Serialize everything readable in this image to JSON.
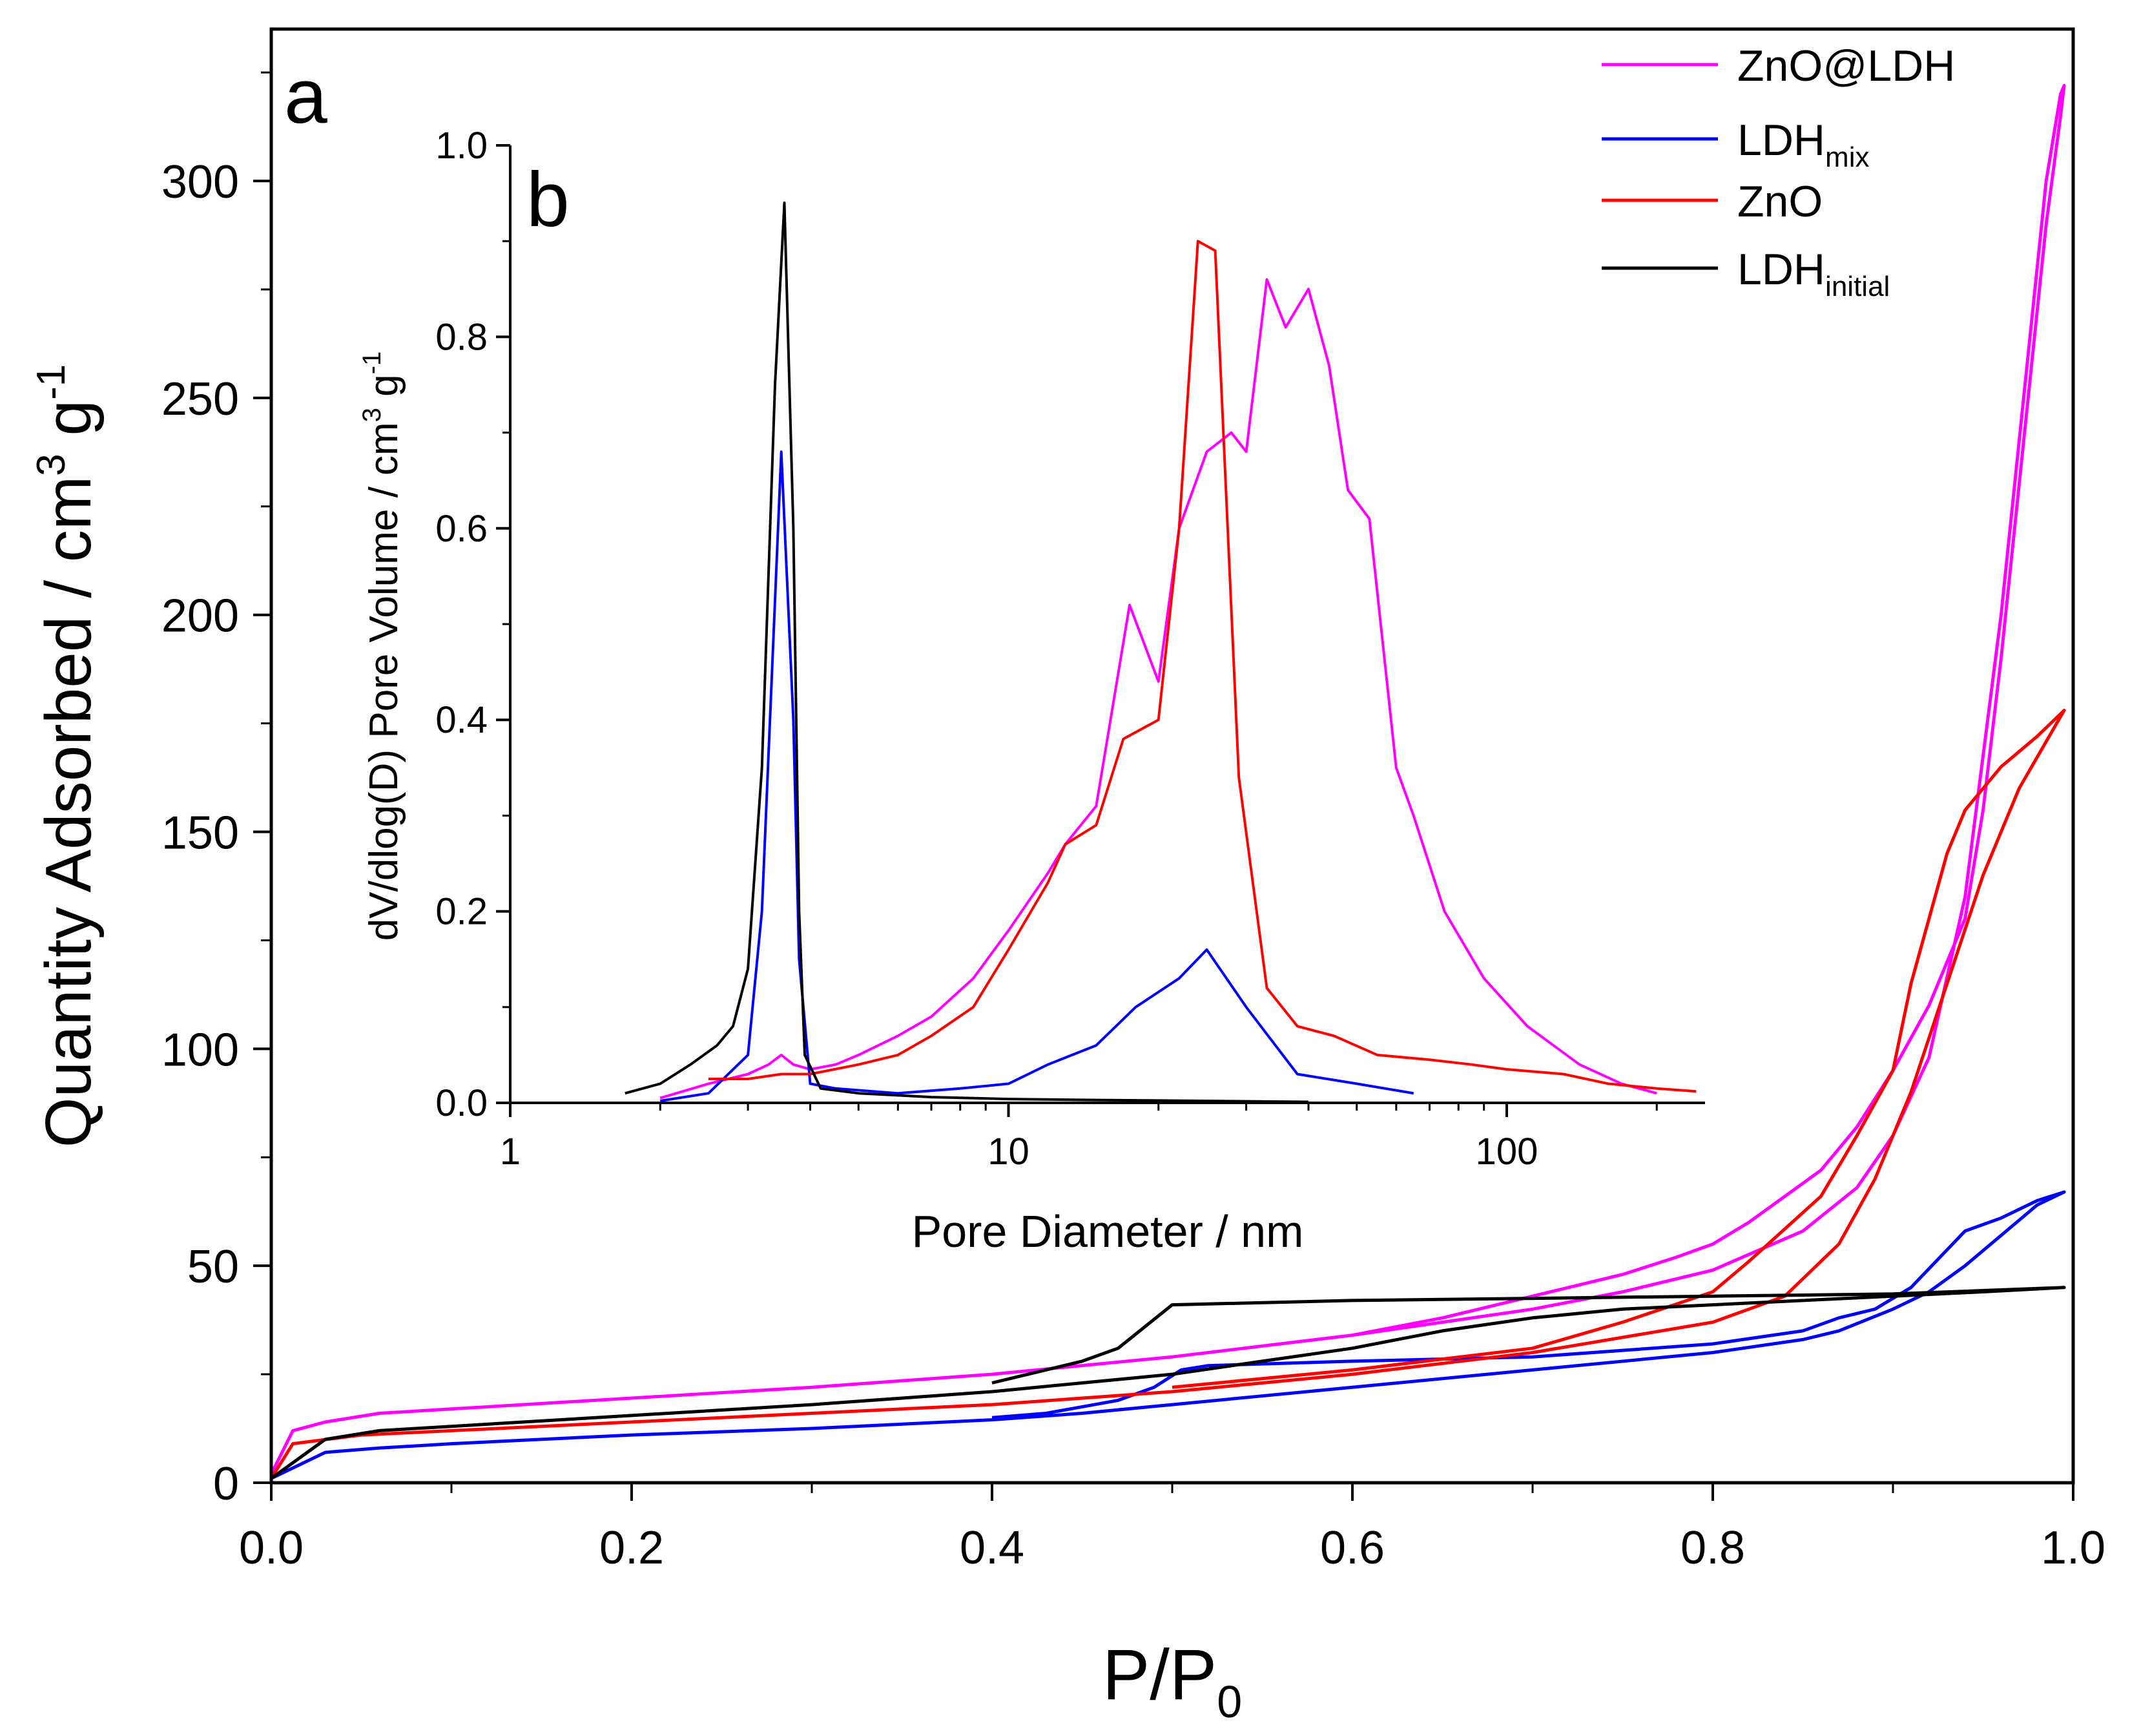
{
  "chart_data": [
    {
      "id": "main",
      "type": "line",
      "panel_label": "a",
      "xlabel": {
        "main": "P/P",
        "sub": "0"
      },
      "ylabel": {
        "prefix": "Quantity Adsorbed / cm",
        "sup1": "3",
        "mid": " g",
        "sup2": "-1"
      },
      "xlim": [
        0.0,
        1.0
      ],
      "ylim": [
        0,
        335
      ],
      "xticks": [
        "0.0",
        "0.2",
        "0.4",
        "0.6",
        "0.8",
        "1.0"
      ],
      "yticks": [
        "0",
        "50",
        "100",
        "150",
        "200",
        "250",
        "300"
      ],
      "legend_position": "top-right",
      "series": [
        {
          "name": "ZnO@LDH",
          "color": "#ff00ff",
          "points": [
            [
              0,
              2
            ],
            [
              0.012,
              12
            ],
            [
              0.03,
              14
            ],
            [
              0.06,
              16
            ],
            [
              0.1,
              17
            ],
            [
              0.2,
              19.5
            ],
            [
              0.3,
              22
            ],
            [
              0.4,
              25
            ],
            [
              0.5,
              29
            ],
            [
              0.6,
              34
            ],
            [
              0.65,
              37
            ],
            [
              0.7,
              40
            ],
            [
              0.75,
              44
            ],
            [
              0.8,
              49
            ],
            [
              0.85,
              58
            ],
            [
              0.88,
              68
            ],
            [
              0.9,
              80
            ],
            [
              0.92,
              98
            ],
            [
              0.94,
              135
            ],
            [
              0.96,
              200
            ],
            [
              0.975,
              260
            ],
            [
              0.985,
              300
            ],
            [
              0.993,
              320
            ],
            [
              0.995,
              322
            ],
            [
              0.993,
              315
            ],
            [
              0.985,
              290
            ],
            [
              0.975,
              250
            ],
            [
              0.96,
              190
            ],
            [
              0.95,
              155
            ],
            [
              0.94,
              130
            ],
            [
              0.92,
              110
            ],
            [
              0.9,
              95
            ],
            [
              0.88,
              82
            ],
            [
              0.86,
              72
            ],
            [
              0.84,
              66
            ],
            [
              0.82,
              60
            ],
            [
              0.8,
              55
            ],
            [
              0.78,
              52
            ],
            [
              0.75,
              48
            ],
            [
              0.7,
              43
            ],
            [
              0.65,
              38
            ],
            [
              0.6,
              34
            ],
            [
              0.5,
              29
            ]
          ]
        },
        {
          "name": "LDH",
          "sub": "mix",
          "color": "#0000ff",
          "points": [
            [
              0,
              1
            ],
            [
              0.03,
              7
            ],
            [
              0.06,
              8
            ],
            [
              0.1,
              9
            ],
            [
              0.2,
              11
            ],
            [
              0.3,
              12.5
            ],
            [
              0.4,
              14.5
            ],
            [
              0.45,
              16
            ],
            [
              0.5,
              18
            ],
            [
              0.6,
              22
            ],
            [
              0.7,
              26
            ],
            [
              0.8,
              30
            ],
            [
              0.85,
              33
            ],
            [
              0.87,
              35
            ],
            [
              0.9,
              40
            ],
            [
              0.92,
              44
            ],
            [
              0.94,
              50
            ],
            [
              0.96,
              57
            ],
            [
              0.98,
              64
            ],
            [
              0.995,
              67
            ],
            [
              0.98,
              65
            ],
            [
              0.96,
              61
            ],
            [
              0.94,
              58
            ],
            [
              0.91,
              45
            ],
            [
              0.89,
              40
            ],
            [
              0.87,
              38
            ],
            [
              0.85,
              35
            ],
            [
              0.8,
              32
            ],
            [
              0.7,
              29
            ],
            [
              0.6,
              28
            ],
            [
              0.52,
              27
            ],
            [
              0.505,
              26
            ],
            [
              0.49,
              22
            ],
            [
              0.47,
              19
            ],
            [
              0.43,
              16
            ],
            [
              0.4,
              15
            ]
          ]
        },
        {
          "name": "ZnO",
          "color": "#ff0000",
          "points": [
            [
              0,
              1
            ],
            [
              0.012,
              9
            ],
            [
              0.05,
              11
            ],
            [
              0.1,
              12
            ],
            [
              0.2,
              14
            ],
            [
              0.3,
              16
            ],
            [
              0.4,
              18
            ],
            [
              0.5,
              21
            ],
            [
              0.6,
              25
            ],
            [
              0.7,
              30
            ],
            [
              0.8,
              37
            ],
            [
              0.84,
              43
            ],
            [
              0.87,
              55
            ],
            [
              0.89,
              70
            ],
            [
              0.91,
              90
            ],
            [
              0.93,
              115
            ],
            [
              0.95,
              140
            ],
            [
              0.97,
              160
            ],
            [
              0.995,
              178
            ],
            [
              0.98,
              172
            ],
            [
              0.96,
              165
            ],
            [
              0.94,
              155
            ],
            [
              0.93,
              145
            ],
            [
              0.92,
              130
            ],
            [
              0.91,
              115
            ],
            [
              0.9,
              95
            ],
            [
              0.88,
              80
            ],
            [
              0.86,
              66
            ],
            [
              0.82,
              51
            ],
            [
              0.8,
              44
            ],
            [
              0.75,
              37
            ],
            [
              0.7,
              31
            ],
            [
              0.6,
              26
            ],
            [
              0.5,
              22
            ]
          ]
        },
        {
          "name": "LDH",
          "sub": "initial",
          "color": "#000000",
          "points": [
            [
              0,
              1
            ],
            [
              0.03,
              10
            ],
            [
              0.06,
              12
            ],
            [
              0.1,
              13
            ],
            [
              0.2,
              15.5
            ],
            [
              0.3,
              18
            ],
            [
              0.4,
              21
            ],
            [
              0.45,
              23
            ],
            [
              0.5,
              25
            ],
            [
              0.55,
              28
            ],
            [
              0.6,
              31
            ],
            [
              0.65,
              35
            ],
            [
              0.7,
              38
            ],
            [
              0.75,
              40
            ],
            [
              0.8,
              41
            ],
            [
              0.85,
              42
            ],
            [
              0.9,
              43
            ],
            [
              0.95,
              44
            ],
            [
              0.995,
              45
            ],
            [
              0.9,
              43.5
            ],
            [
              0.8,
              43
            ],
            [
              0.7,
              42.5
            ],
            [
              0.6,
              42
            ],
            [
              0.5,
              41
            ],
            [
              0.47,
              31
            ],
            [
              0.45,
              28
            ],
            [
              0.42,
              25
            ],
            [
              0.4,
              23
            ]
          ]
        }
      ]
    },
    {
      "id": "inset",
      "type": "line",
      "panel_label": "b",
      "xscale": "log",
      "xlabel": "Pore Diameter / nm",
      "ylabel": {
        "prefix": "dV/dlog(D) Pore Volume / cm",
        "sup1": "3",
        "mid": " g",
        "sup2": "-1"
      },
      "xlim": [
        1,
        250
      ],
      "ylim": [
        0,
        1.0
      ],
      "xticks": [
        "1",
        "10",
        "100"
      ],
      "yticks": [
        "0.0",
        "0.2",
        "0.4",
        "0.6",
        "0.8",
        "1.0"
      ],
      "series": [
        {
          "name": "ZnO@LDH",
          "color": "#ff00ff",
          "points": [
            [
              2,
              0.005
            ],
            [
              2.5,
              0.02
            ],
            [
              3,
              0.03
            ],
            [
              3.3,
              0.04
            ],
            [
              3.5,
              0.05
            ],
            [
              3.7,
              0.04
            ],
            [
              4,
              0.035
            ],
            [
              4.5,
              0.04
            ],
            [
              5,
              0.05
            ],
            [
              6,
              0.07
            ],
            [
              7,
              0.09
            ],
            [
              8.5,
              0.13
            ],
            [
              10,
              0.18
            ],
            [
              12,
              0.24
            ],
            [
              13,
              0.27
            ],
            [
              15,
              0.31
            ],
            [
              17.5,
              0.52
            ],
            [
              20,
              0.44
            ],
            [
              22,
              0.6
            ],
            [
              25,
              0.68
            ],
            [
              28,
              0.7
            ],
            [
              30,
              0.68
            ],
            [
              33,
              0.86
            ],
            [
              36,
              0.81
            ],
            [
              40,
              0.85
            ],
            [
              44,
              0.77
            ],
            [
              48,
              0.64
            ],
            [
              53,
              0.61
            ],
            [
              60,
              0.35
            ],
            [
              65,
              0.3
            ],
            [
              75,
              0.2
            ],
            [
              90,
              0.13
            ],
            [
              110,
              0.08
            ],
            [
              140,
              0.04
            ],
            [
              170,
              0.02
            ],
            [
              200,
              0.01
            ]
          ]
        },
        {
          "name": "LDH_mix",
          "color": "#0000ff",
          "points": [
            [
              2,
              0.002
            ],
            [
              2.5,
              0.01
            ],
            [
              3,
              0.05
            ],
            [
              3.2,
              0.2
            ],
            [
              3.5,
              0.68
            ],
            [
              3.7,
              0.4
            ],
            [
              3.8,
              0.15
            ],
            [
              4,
              0.02
            ],
            [
              4.5,
              0.015
            ],
            [
              6,
              0.01
            ],
            [
              8,
              0.015
            ],
            [
              10,
              0.02
            ],
            [
              12,
              0.04
            ],
            [
              15,
              0.06
            ],
            [
              18,
              0.1
            ],
            [
              22,
              0.13
            ],
            [
              25,
              0.16
            ],
            [
              30,
              0.1
            ],
            [
              38,
              0.03
            ],
            [
              50,
              0.02
            ],
            [
              65,
              0.01
            ]
          ]
        },
        {
          "name": "ZnO",
          "color": "#ff0000",
          "points": [
            [
              2.5,
              0.025
            ],
            [
              3,
              0.025
            ],
            [
              3.5,
              0.03
            ],
            [
              4,
              0.03
            ],
            [
              5,
              0.04
            ],
            [
              6,
              0.05
            ],
            [
              7,
              0.07
            ],
            [
              8.5,
              0.1
            ],
            [
              10,
              0.16
            ],
            [
              12,
              0.23
            ],
            [
              13,
              0.27
            ],
            [
              15,
              0.29
            ],
            [
              17,
              0.38
            ],
            [
              20,
              0.4
            ],
            [
              22,
              0.6
            ],
            [
              24,
              0.9
            ],
            [
              26,
              0.89
            ],
            [
              29,
              0.34
            ],
            [
              33,
              0.12
            ],
            [
              38,
              0.08
            ],
            [
              45,
              0.07
            ],
            [
              55,
              0.05
            ],
            [
              70,
              0.045
            ],
            [
              85,
              0.04
            ],
            [
              100,
              0.035
            ],
            [
              130,
              0.03
            ],
            [
              160,
              0.02
            ],
            [
              200,
              0.015
            ],
            [
              240,
              0.012
            ]
          ]
        },
        {
          "name": "LDH_initial",
          "color": "#000000",
          "points": [
            [
              1.7,
              0.01
            ],
            [
              2,
              0.02
            ],
            [
              2.3,
              0.04
            ],
            [
              2.6,
              0.06
            ],
            [
              2.8,
              0.08
            ],
            [
              3.0,
              0.14
            ],
            [
              3.2,
              0.35
            ],
            [
              3.4,
              0.75
            ],
            [
              3.55,
              0.94
            ],
            [
              3.7,
              0.6
            ],
            [
              3.8,
              0.2
            ],
            [
              3.9,
              0.05
            ],
            [
              4.2,
              0.015
            ],
            [
              5,
              0.01
            ],
            [
              7,
              0.006
            ],
            [
              10,
              0.004
            ],
            [
              15,
              0.003
            ],
            [
              25,
              0.002
            ],
            [
              40,
              0.001
            ]
          ]
        }
      ]
    }
  ]
}
